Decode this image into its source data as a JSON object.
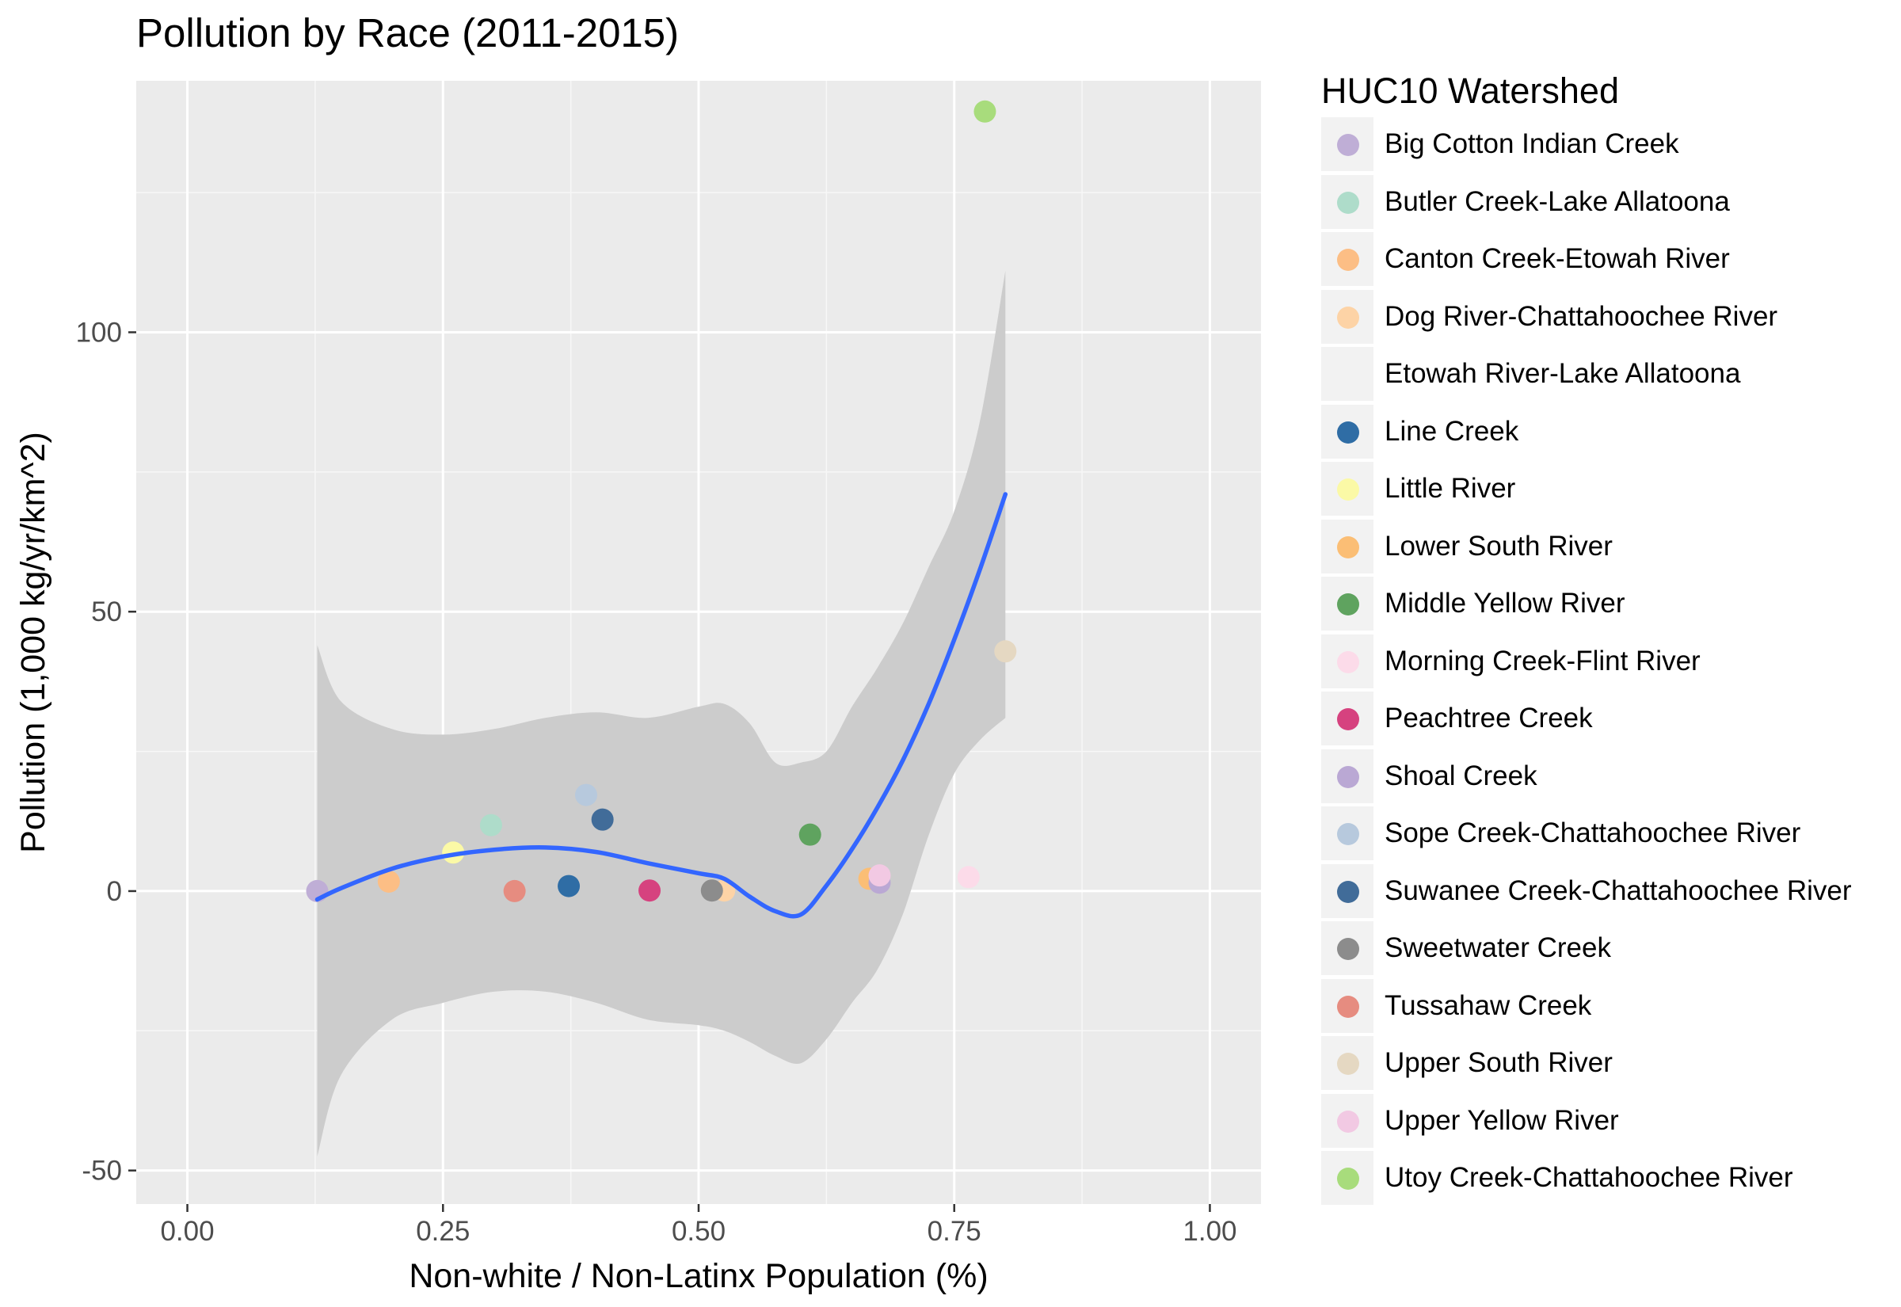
{
  "chart_data": {
    "type": "scatter",
    "title": "Pollution by Race (2011-2015)",
    "xlabel": "Non-white / Non-Latinx Population (%)",
    "ylabel": "Pollution (1,000 kg/yr/km^2)",
    "xlim": [
      -0.05,
      1.05
    ],
    "ylim": [
      -56,
      145
    ],
    "x_ticks": [
      0.0,
      0.25,
      0.5,
      0.75,
      1.0
    ],
    "x_tick_labels": [
      "0.00",
      "0.25",
      "0.50",
      "0.75",
      "1.00"
    ],
    "y_ticks": [
      -50,
      0,
      50,
      100
    ],
    "y_tick_labels": [
      "-50",
      "0",
      "50",
      "100"
    ],
    "grid": true,
    "legend_title": "HUC10 Watershed",
    "legend_position": "right",
    "series": [
      {
        "name": "Big Cotton Indian Creek",
        "color": "#bfaed6",
        "points": [
          [
            0.127,
            0.0
          ]
        ]
      },
      {
        "name": "Butler Creek-Lake Allatoona",
        "color": "#aedcca",
        "points": [
          [
            0.297,
            11.8
          ]
        ]
      },
      {
        "name": "Canton Creek-Etowah River",
        "color": "#fcbe85",
        "points": [
          [
            0.197,
            1.7
          ]
        ]
      },
      {
        "name": "Dog River-Chattahoochee River",
        "color": "#fdd3a6",
        "points": [
          [
            0.525,
            0.1
          ]
        ]
      },
      {
        "name": "Etowah River-Lake Allatoona",
        "color": "#f2f2f2",
        "points": []
      },
      {
        "name": "Line Creek",
        "color": "#2f6da5",
        "points": [
          [
            0.373,
            0.9
          ]
        ]
      },
      {
        "name": "Little River",
        "color": "#fbf9a6",
        "points": [
          [
            0.26,
            6.9
          ]
        ]
      },
      {
        "name": "Lower South River",
        "color": "#fbbe75",
        "points": [
          [
            0.667,
            2.2
          ]
        ]
      },
      {
        "name": "Middle Yellow River",
        "color": "#5fa35f",
        "points": [
          [
            0.609,
            10.1
          ]
        ]
      },
      {
        "name": "Morning Creek-Flint River",
        "color": "#fcdbe9",
        "points": [
          [
            0.764,
            2.5
          ]
        ]
      },
      {
        "name": "Peachtree Creek",
        "color": "#d6427f",
        "points": [
          [
            0.452,
            0.1
          ]
        ]
      },
      {
        "name": "Shoal Creek",
        "color": "#baa8d4",
        "points": [
          [
            0.677,
            1.5
          ]
        ]
      },
      {
        "name": "Sope Creek-Chattahoochee River",
        "color": "#b7c9dd",
        "points": [
          [
            0.39,
            17.2
          ]
        ]
      },
      {
        "name": "Suwanee Creek-Chattahoochee River",
        "color": "#416c99",
        "points": [
          [
            0.406,
            12.8
          ]
        ]
      },
      {
        "name": "Sweetwater Creek",
        "color": "#8c8c8c",
        "points": [
          [
            0.513,
            0.1
          ]
        ]
      },
      {
        "name": "Tussahaw Creek",
        "color": "#e68c80",
        "points": [
          [
            0.32,
            0.0
          ]
        ]
      },
      {
        "name": "Upper South River",
        "color": "#e5d8c2",
        "points": [
          [
            0.8,
            42.9
          ]
        ]
      },
      {
        "name": "Upper Yellow River",
        "color": "#f2c9e3",
        "points": [
          [
            0.677,
            2.8
          ]
        ]
      },
      {
        "name": "Utoy Creek-Chattahoochee River",
        "color": "#a8dc7c",
        "points": [
          [
            0.78,
            139.5
          ]
        ]
      }
    ],
    "smooth": {
      "method": "loess",
      "color": "#3366ff",
      "band_color": "#cccccc",
      "x": [
        0.127,
        0.15,
        0.2,
        0.25,
        0.3,
        0.35,
        0.4,
        0.45,
        0.5,
        0.525,
        0.55,
        0.575,
        0.6,
        0.625,
        0.65,
        0.675,
        0.7,
        0.725,
        0.75,
        0.775,
        0.8
      ],
      "y": [
        -1.5,
        0.5,
        4.0,
        6.2,
        7.4,
        7.8,
        7.0,
        5.0,
        3.2,
        2.2,
        -1.0,
        -3.6,
        -4.2,
        1.0,
        7.5,
        15.0,
        23.5,
        33.5,
        45.0,
        57.5,
        71.0
      ],
      "lower": [
        -47.5,
        -33.0,
        -23.0,
        -20.0,
        -18.0,
        -18.0,
        -20.0,
        -23.0,
        -24.0,
        -25.0,
        -27.0,
        -29.5,
        -30.8,
        -26.5,
        -20.0,
        -14.0,
        -4.0,
        10.0,
        21.0,
        27.0,
        31.0
      ],
      "upper": [
        44.0,
        34.0,
        29.0,
        28.0,
        29.0,
        31.0,
        32.0,
        31.0,
        33.0,
        33.5,
        30.0,
        23.0,
        23.0,
        25.0,
        33.0,
        40.0,
        48.0,
        58.0,
        68.0,
        84.0,
        111.0
      ]
    }
  }
}
